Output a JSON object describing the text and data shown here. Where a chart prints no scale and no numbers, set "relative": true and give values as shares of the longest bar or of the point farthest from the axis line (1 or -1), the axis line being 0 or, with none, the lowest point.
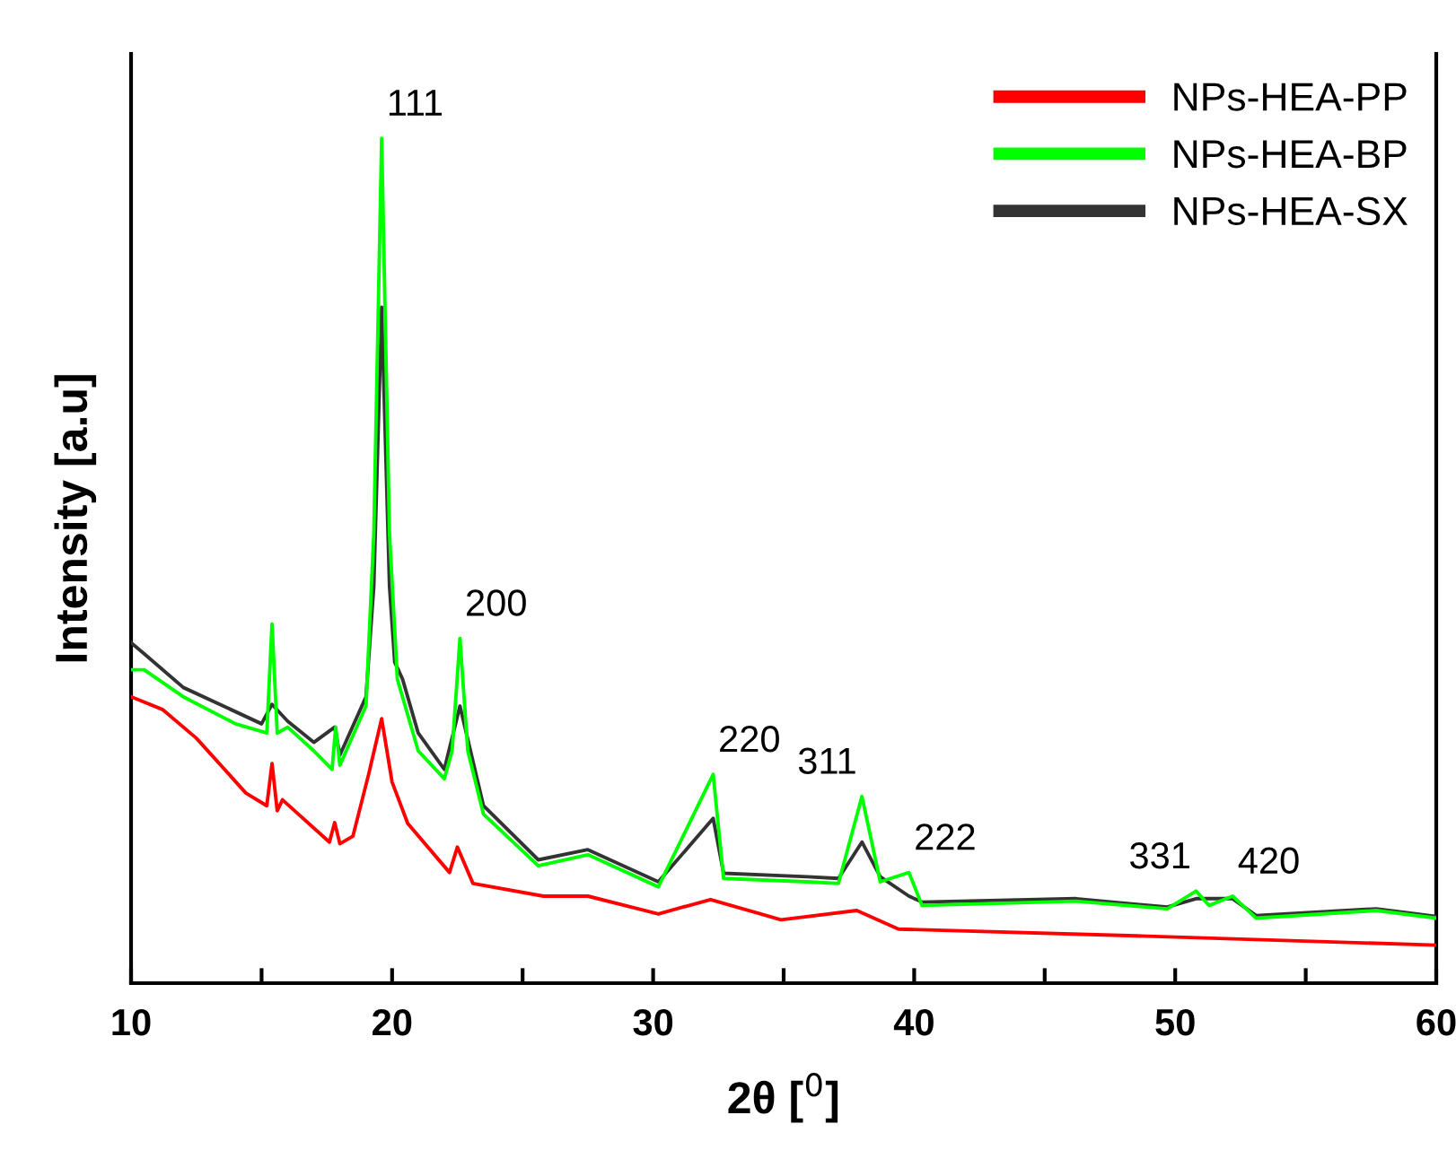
{
  "chart_data": {
    "type": "line",
    "relative": true,
    "xlabel": "2θ [$^{0}$]",
    "ylabel": "Intensity [a.u]",
    "xlim": [
      10,
      60
    ],
    "xticks": [
      10,
      {
        "value": 15,
        "label": null
      },
      20,
      {
        "value": 25,
        "label": null
      },
      30,
      {
        "value": 35,
        "label": null
      },
      40,
      {
        "value": 45,
        "label": null
      },
      50,
      {
        "value": 55,
        "label": null
      },
      60
    ],
    "legend": "top right",
    "grid": false,
    "marker": "none",
    "line_style": "solid",
    "series": [
      {
        "name": "NPs-HEA-PP",
        "color": "#ff0000",
        "x": [
          10,
          11.2,
          12.5,
          14.4,
          15.2,
          15.4,
          15.6,
          15.8,
          17.6,
          17.8,
          18.0,
          18.5,
          19.1,
          19.6,
          20.0,
          20.6,
          22.2,
          22.5,
          23.1,
          25.8,
          27.5,
          30.2,
          32.2,
          34.9,
          37.8,
          39.4,
          48.5,
          60
        ],
        "values": [
          0.339,
          0.324,
          0.29,
          0.225,
          0.21,
          0.26,
          0.204,
          0.217,
          0.167,
          0.19,
          0.165,
          0.174,
          0.247,
          0.313,
          0.238,
          0.189,
          0.131,
          0.161,
          0.118,
          0.103,
          0.103,
          0.082,
          0.099,
          0.075,
          0.086,
          0.064,
          0.056,
          0.045
        ]
      },
      {
        "name": "NPs-HEA-BP",
        "color": "#00ff00",
        "x": [
          10,
          10.5,
          12,
          14,
          15.2,
          15.4,
          15.6,
          16,
          17,
          17.7,
          17.84,
          18,
          19,
          19.3,
          19.6,
          19.9,
          20.2,
          21,
          22,
          22.3,
          22.6,
          22.9,
          23.5,
          25.6,
          27.5,
          30.2,
          32.3,
          32.7,
          35.9,
          37.1,
          38.0,
          38.7,
          39.8,
          40.3,
          46.2,
          49.7,
          50.8,
          51.3,
          52.2,
          53.1,
          57.7,
          60
        ],
        "values": [
          0.371,
          0.371,
          0.339,
          0.307,
          0.296,
          0.425,
          0.296,
          0.303,
          0.275,
          0.253,
          0.303,
          0.258,
          0.328,
          0.532,
          1.0,
          0.532,
          0.36,
          0.275,
          0.242,
          0.275,
          0.408,
          0.275,
          0.2,
          0.139,
          0.152,
          0.114,
          0.247,
          0.124,
          0.12,
          0.118,
          0.221,
          0.12,
          0.131,
          0.092,
          0.097,
          0.088,
          0.109,
          0.092,
          0.103,
          0.077,
          0.086,
          0.077
        ]
      },
      {
        "name": "NPs-HEA-SX",
        "color": "#333333",
        "x": [
          10,
          10.5,
          12,
          15,
          15.4,
          16,
          17,
          17.8,
          18,
          19,
          19.3,
          19.6,
          19.9,
          20.1,
          20.4,
          21,
          22,
          22.6,
          23.5,
          25.6,
          27.5,
          30.2,
          32.3,
          32.7,
          35.9,
          37.1,
          38.0,
          38.7,
          39.8,
          40.3,
          46.2,
          49.7,
          50.8,
          52.2,
          53.1,
          57.7,
          60
        ],
        "values": [
          0.403,
          0.39,
          0.35,
          0.307,
          0.33,
          0.31,
          0.285,
          0.303,
          0.27,
          0.339,
          0.47,
          0.8,
          0.47,
          0.38,
          0.36,
          0.296,
          0.253,
          0.328,
          0.21,
          0.146,
          0.158,
          0.12,
          0.195,
          0.13,
          0.126,
          0.124,
          0.167,
          0.126,
          0.103,
          0.096,
          0.1,
          0.09,
          0.1,
          0.1,
          0.08,
          0.088,
          0.079
        ]
      }
    ],
    "annotations": [
      {
        "text": "111",
        "x": 19.6,
        "y": 1.0
      },
      {
        "text": "200",
        "x": 22.6,
        "y": 0.408
      },
      {
        "text": "220",
        "x": 32.3,
        "y": 0.247
      },
      {
        "text": "311",
        "x": 38.0,
        "y": 0.221
      },
      {
        "text": "222",
        "x": 39.8,
        "y": 0.131
      },
      {
        "text": "331",
        "x": 50.8,
        "y": 0.109
      },
      {
        "text": "420",
        "x": 52.2,
        "y": 0.103
      }
    ]
  }
}
